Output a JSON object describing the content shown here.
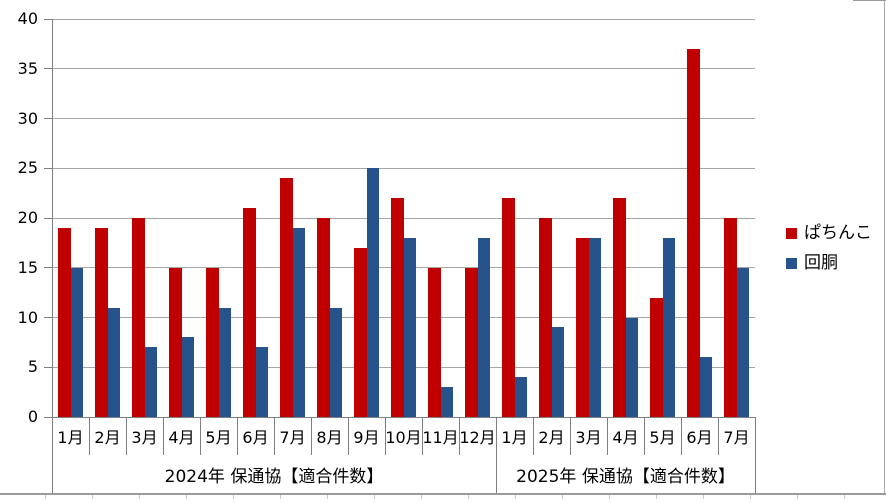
{
  "chart_data": {
    "type": "bar",
    "title": "",
    "xlabel": "",
    "ylabel": "",
    "ylim": [
      0,
      40
    ],
    "ytick_interval": 5,
    "ytick_labels": [
      "0",
      "5",
      "10",
      "15",
      "20",
      "25",
      "30",
      "35",
      "40"
    ],
    "grid": true,
    "legend_position": "right",
    "groups": [
      {
        "label": "2024年 保通協【適合件数】",
        "categories": [
          "1月",
          "2月",
          "3月",
          "4月",
          "5月",
          "6月",
          "7月",
          "8月",
          "9月",
          "10月",
          "11月",
          "12月"
        ]
      },
      {
        "label": "2025年 保通協【適合件数】",
        "categories": [
          "1月",
          "2月",
          "3月",
          "4月",
          "5月",
          "6月",
          "7月"
        ]
      }
    ],
    "series": [
      {
        "name": "ぱちんこ",
        "key": "pachinko",
        "color": "#c00000",
        "values": [
          19,
          19,
          20,
          15,
          15,
          21,
          24,
          20,
          17,
          22,
          15,
          15,
          22,
          20,
          18,
          22,
          12,
          37,
          20
        ]
      },
      {
        "name": "回胴",
        "key": "kaido",
        "color": "#26538c",
        "values": [
          15,
          11,
          7,
          8,
          11,
          7,
          19,
          11,
          25,
          18,
          3,
          18,
          4,
          9,
          18,
          10,
          18,
          6,
          15
        ]
      }
    ]
  },
  "colors": {
    "gridline": "#a6a6a6",
    "axis": "#7f7f7f",
    "text": "#000000"
  }
}
